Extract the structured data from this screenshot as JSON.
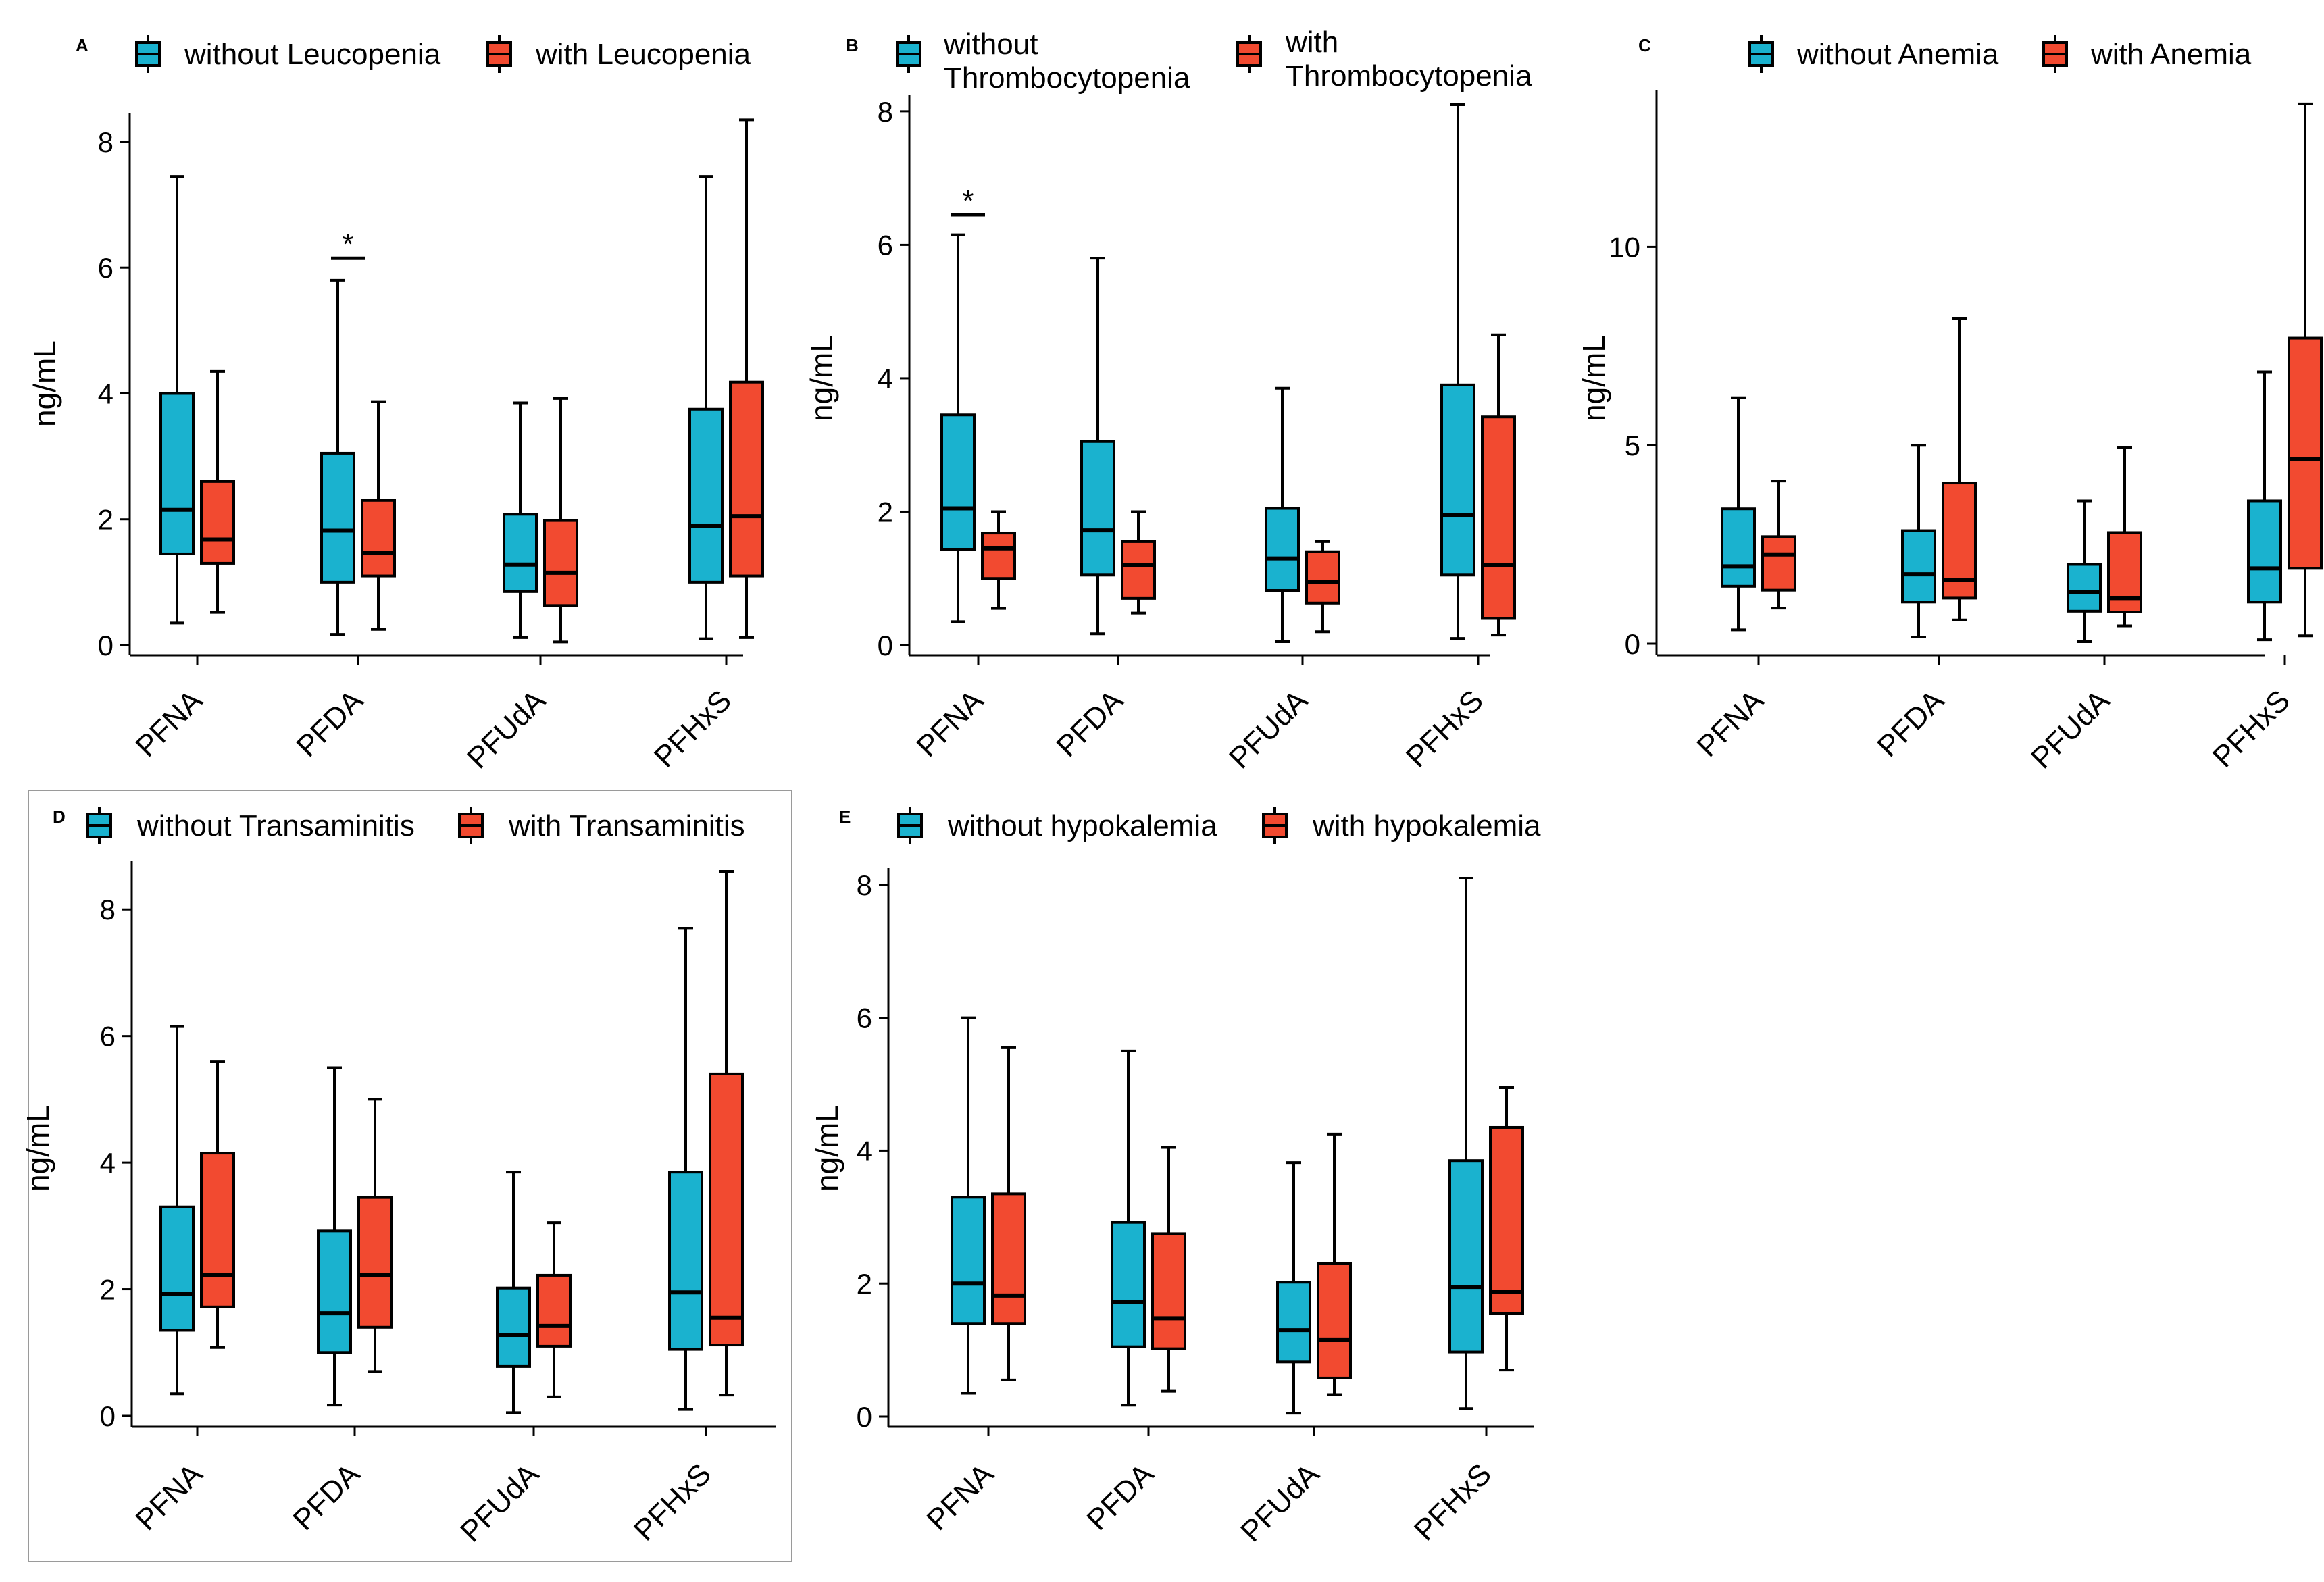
{
  "figure": {
    "colors": {
      "without": "#1AB2CF",
      "with": "#F24A30",
      "stroke": "#000000"
    }
  },
  "chart_data": [
    {
      "type": "box",
      "panel": "A",
      "legend": [
        "without Leucopenia",
        "with Leucopenia"
      ],
      "ylabel": "ng/mL",
      "categories": [
        "PFNA",
        "PFDA",
        "PFUdA",
        "PFHxS"
      ],
      "yticks": [
        0,
        2,
        4,
        6,
        8
      ],
      "ylim": [
        0,
        8.3
      ],
      "series": [
        {
          "name": "without Leucopenia",
          "boxes": [
            {
              "min": 0.35,
              "q1": 1.45,
              "median": 2.15,
              "q3": 4.0,
              "max": 7.45
            },
            {
              "min": 0.17,
              "q1": 1.0,
              "median": 1.82,
              "q3": 3.05,
              "max": 5.8
            },
            {
              "min": 0.12,
              "q1": 0.85,
              "median": 1.28,
              "q3": 2.08,
              "max": 3.85
            },
            {
              "min": 0.1,
              "q1": 1.0,
              "median": 1.9,
              "q3": 3.75,
              "max": 7.45
            }
          ]
        },
        {
          "name": "with Leucopenia",
          "boxes": [
            {
              "min": 0.52,
              "q1": 1.3,
              "median": 1.68,
              "q3": 2.6,
              "max": 4.35
            },
            {
              "min": 0.25,
              "q1": 1.1,
              "median": 1.47,
              "q3": 2.3,
              "max": 3.87
            },
            {
              "min": 0.05,
              "q1": 0.63,
              "median": 1.15,
              "q3": 1.98,
              "max": 3.92
            },
            {
              "min": 0.12,
              "q1": 1.1,
              "median": 2.05,
              "q3": 4.18,
              "max": 8.35
            }
          ]
        }
      ],
      "annotations": [
        {
          "text": "*",
          "category": "PFDA",
          "y": 6.15
        }
      ]
    },
    {
      "type": "box",
      "panel": "B",
      "legend": [
        "without Thrombocytopenia",
        "with Thrombocytopenia"
      ],
      "ylabel": "ng/mL",
      "categories": [
        "PFNA",
        "PFDA",
        "PFUdA",
        "PFHxS"
      ],
      "yticks": [
        0,
        2,
        4,
        6,
        8
      ],
      "ylim": [
        0,
        8.1
      ],
      "series": [
        {
          "name": "without Thrombocytopenia",
          "boxes": [
            {
              "min": 0.35,
              "q1": 1.43,
              "median": 2.05,
              "q3": 3.45,
              "max": 6.15
            },
            {
              "min": 0.17,
              "q1": 1.05,
              "median": 1.72,
              "q3": 3.05,
              "max": 5.8
            },
            {
              "min": 0.05,
              "q1": 0.82,
              "median": 1.3,
              "q3": 2.05,
              "max": 3.85
            },
            {
              "min": 0.1,
              "q1": 1.05,
              "median": 1.95,
              "q3": 3.9,
              "max": 8.1
            }
          ]
        },
        {
          "name": "with Thrombocytopenia",
          "boxes": [
            {
              "min": 0.55,
              "q1": 1.0,
              "median": 1.45,
              "q3": 1.68,
              "max": 2.0
            },
            {
              "min": 0.48,
              "q1": 0.7,
              "median": 1.2,
              "q3": 1.55,
              "max": 2.0
            },
            {
              "min": 0.2,
              "q1": 0.63,
              "median": 0.95,
              "q3": 1.4,
              "max": 1.55
            },
            {
              "min": 0.15,
              "q1": 0.4,
              "median": 1.2,
              "q3": 3.42,
              "max": 4.65
            }
          ]
        }
      ],
      "annotations": [
        {
          "text": "*",
          "category": "PFNA",
          "y": 6.45
        }
      ]
    },
    {
      "type": "box",
      "panel": "C",
      "legend": [
        "without Anemia",
        "with Anemia"
      ],
      "ylabel": "ng/mL",
      "categories": [
        "PFNA",
        "PFDA",
        "PFUdA",
        "PFHxS"
      ],
      "yticks": [
        0,
        5,
        10
      ],
      "ylim": [
        0,
        13.7
      ],
      "series": [
        {
          "name": "without Anemia",
          "boxes": [
            {
              "min": 0.35,
              "q1": 1.45,
              "median": 1.95,
              "q3": 3.4,
              "max": 6.2
            },
            {
              "min": 0.17,
              "q1": 1.05,
              "median": 1.75,
              "q3": 2.85,
              "max": 5.0
            },
            {
              "min": 0.05,
              "q1": 0.82,
              "median": 1.3,
              "q3": 2.0,
              "max": 3.6
            },
            {
              "min": 0.1,
              "q1": 1.05,
              "median": 1.9,
              "q3": 3.6,
              "max": 6.85
            }
          ]
        },
        {
          "name": "with Anemia",
          "boxes": [
            {
              "min": 0.9,
              "q1": 1.35,
              "median": 2.25,
              "q3": 2.7,
              "max": 4.1
            },
            {
              "min": 0.6,
              "q1": 1.15,
              "median": 1.6,
              "q3": 4.05,
              "max": 8.2
            },
            {
              "min": 0.45,
              "q1": 0.8,
              "median": 1.15,
              "q3": 2.8,
              "max": 4.95
            },
            {
              "min": 0.2,
              "q1": 1.9,
              "median": 4.65,
              "q3": 7.7,
              "max": 13.6
            }
          ]
        }
      ],
      "annotations": []
    },
    {
      "type": "box",
      "panel": "D",
      "legend": [
        "without Transaminitis",
        "with Transaminitis"
      ],
      "ylabel": "ng/mL",
      "categories": [
        "PFNA",
        "PFDA",
        "PFUdA",
        "PFHxS"
      ],
      "yticks": [
        0,
        2,
        4,
        6,
        8
      ],
      "ylim": [
        0,
        8.6
      ],
      "series": [
        {
          "name": "without Transaminitis",
          "boxes": [
            {
              "min": 0.35,
              "q1": 1.35,
              "median": 1.92,
              "q3": 3.3,
              "max": 6.15
            },
            {
              "min": 0.17,
              "q1": 1.0,
              "median": 1.62,
              "q3": 2.92,
              "max": 5.5
            },
            {
              "min": 0.05,
              "q1": 0.78,
              "median": 1.28,
              "q3": 2.02,
              "max": 3.85
            },
            {
              "min": 0.1,
              "q1": 1.05,
              "median": 1.95,
              "q3": 3.85,
              "max": 7.7
            }
          ]
        },
        {
          "name": "with Transaminitis",
          "boxes": [
            {
              "min": 1.08,
              "q1": 1.72,
              "median": 2.22,
              "q3": 4.15,
              "max": 5.6
            },
            {
              "min": 0.7,
              "q1": 1.4,
              "median": 2.22,
              "q3": 3.45,
              "max": 5.0
            },
            {
              "min": 0.3,
              "q1": 1.1,
              "median": 1.42,
              "q3": 2.22,
              "max": 3.05
            },
            {
              "min": 0.33,
              "q1": 1.12,
              "median": 1.55,
              "q3": 5.4,
              "max": 8.6
            }
          ]
        }
      ],
      "annotations": []
    },
    {
      "type": "box",
      "panel": "E",
      "legend": [
        "without hypokalemia",
        "with hypokalemia"
      ],
      "ylabel": "ng/mL",
      "categories": [
        "PFNA",
        "PFDA",
        "PFUdA",
        "PFHxS"
      ],
      "yticks": [
        0,
        2,
        4,
        6,
        8
      ],
      "ylim": [
        0,
        8.1
      ],
      "series": [
        {
          "name": "without hypokalemia",
          "boxes": [
            {
              "min": 0.35,
              "q1": 1.4,
              "median": 2.0,
              "q3": 3.3,
              "max": 6.0
            },
            {
              "min": 0.17,
              "q1": 1.05,
              "median": 1.72,
              "q3": 2.92,
              "max": 5.5
            },
            {
              "min": 0.05,
              "q1": 0.82,
              "median": 1.3,
              "q3": 2.02,
              "max": 3.82
            },
            {
              "min": 0.12,
              "q1": 0.97,
              "median": 1.95,
              "q3": 3.85,
              "max": 8.1
            }
          ]
        },
        {
          "name": "with hypokalemia",
          "boxes": [
            {
              "min": 0.55,
              "q1": 1.4,
              "median": 1.82,
              "q3": 3.35,
              "max": 5.55
            },
            {
              "min": 0.38,
              "q1": 1.02,
              "median": 1.48,
              "q3": 2.75,
              "max": 4.05
            },
            {
              "min": 0.33,
              "q1": 0.58,
              "median": 1.15,
              "q3": 2.3,
              "max": 4.25
            },
            {
              "min": 0.7,
              "q1": 1.55,
              "median": 1.88,
              "q3": 4.35,
              "max": 4.95
            }
          ]
        }
      ],
      "annotations": []
    }
  ]
}
